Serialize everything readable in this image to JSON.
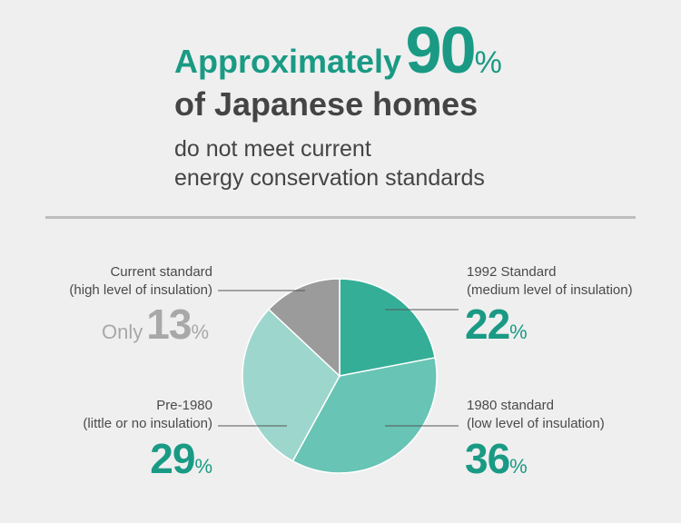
{
  "headline": {
    "prefix": "Approximately",
    "number": "90",
    "percent": "%",
    "line2": "of Japanese homes",
    "line3": "do not meet current",
    "line4": "energy conservation standards"
  },
  "colors": {
    "accent": "#1a9a84",
    "text": "#444444",
    "background": "#efefef",
    "divider": "#bdbdbd"
  },
  "chart_data": {
    "type": "pie",
    "start_angle_deg": 0,
    "direction": "clockwise",
    "slices": [
      {
        "label_line1": "1992 Standard",
        "label_line2": "(medium level of insulation)",
        "value": 22,
        "color": "#35ae98"
      },
      {
        "label_line1": "1980 standard",
        "label_line2": "(low level of insulation)",
        "value": 36,
        "color": "#68c4b5"
      },
      {
        "label_line1": "Pre-1980",
        "label_line2": "(little or no insulation)",
        "value": 29,
        "color": "#9dd6cc"
      },
      {
        "label_line1": "Current standard",
        "label_line2": "(high level of insulation)",
        "value": 13,
        "color": "#9b9b9b"
      }
    ],
    "callouts": {
      "current": {
        "prefix": "Only",
        "value": "13",
        "percent": "%"
      },
      "s1992": {
        "value": "22",
        "percent": "%"
      },
      "s1980": {
        "value": "36",
        "percent": "%"
      },
      "pre1980": {
        "value": "29",
        "percent": "%"
      }
    }
  }
}
